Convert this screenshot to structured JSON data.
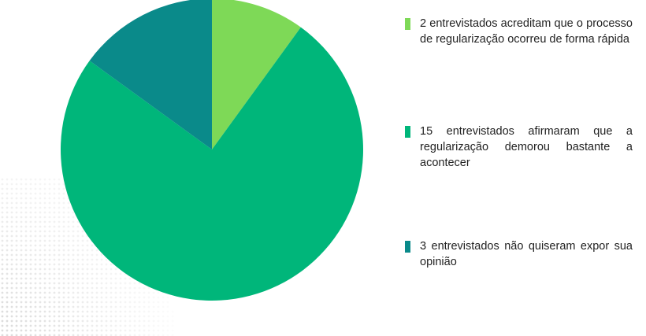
{
  "chart_data": {
    "type": "pie",
    "start_angle_deg": 0,
    "direction": "clockwise",
    "slices": [
      {
        "label": "2 entrevistados acreditam que o processo de regularização ocorreu de forma rápida",
        "value": 2,
        "color": "#7ed957"
      },
      {
        "label": "15 entrevistados afirmaram que a regularização demorou bastante a acontecer",
        "value": 15,
        "color": "#00b67a"
      },
      {
        "label": "3 entrevistados não quiseram expor sua opinião",
        "value": 3,
        "color": "#0a8a8a"
      }
    ],
    "legend_position": "right"
  }
}
